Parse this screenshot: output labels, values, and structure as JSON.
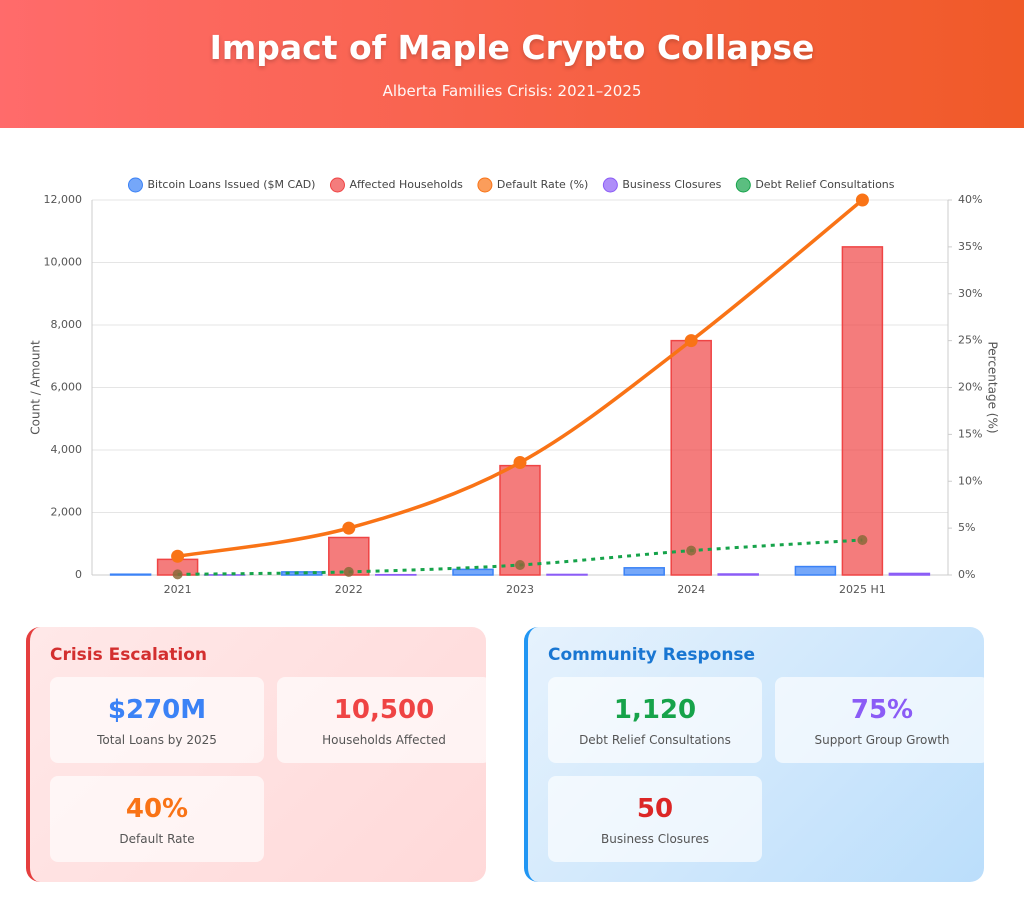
{
  "header": {
    "title": "Impact of Maple Crypto Collapse",
    "subtitle": "Alberta Families Crisis: 2021–2025"
  },
  "chart_data": {
    "type": "bar",
    "categories": [
      "2021",
      "2022",
      "2023",
      "2024",
      "2025 H1"
    ],
    "y_label": "Count / Amount",
    "y2_label": "Percentage (%)",
    "ylim": [
      0,
      12000
    ],
    "yticks": [
      0,
      {
        "value": 2000,
        "label": "2,000"
      },
      {
        "value": 4000,
        "label": "4,000"
      },
      {
        "value": 6000,
        "label": "6,000"
      },
      {
        "value": 8000,
        "label": "8,000"
      },
      {
        "value": 10000,
        "label": "10,000"
      },
      {
        "value": 12000,
        "label": "12,000"
      }
    ],
    "y2lim": [
      0,
      40
    ],
    "y2ticks": [
      {
        "value": 0,
        "label": "0%"
      },
      {
        "value": 5,
        "label": "5%"
      },
      {
        "value": 10,
        "label": "10%"
      },
      {
        "value": 15,
        "label": "15%"
      },
      {
        "value": 20,
        "label": "20%"
      },
      {
        "value": 25,
        "label": "25%"
      },
      {
        "value": 30,
        "label": "30%"
      },
      {
        "value": 35,
        "label": "35%"
      },
      {
        "value": 40,
        "label": "40%"
      }
    ],
    "grid": true,
    "legend": "top",
    "series": [
      {
        "name": "Bitcoin Loans Issued ($M CAD)",
        "type": "bar",
        "color": "#3b82f6",
        "values": [
          25,
          100,
          180,
          230,
          270
        ]
      },
      {
        "name": "Affected Households",
        "type": "bar",
        "color": "#ef4444",
        "values": [
          500,
          1200,
          3500,
          7500,
          10500
        ]
      },
      {
        "name": "Default Rate (%)",
        "type": "line",
        "axis": "y2",
        "color": "#f97316",
        "values": [
          2,
          5,
          12,
          25,
          40
        ]
      },
      {
        "name": "Business Closures",
        "type": "bar",
        "color": "#8b5cf6",
        "values": [
          3,
          10,
          18,
          32,
          50
        ]
      },
      {
        "name": "Debt Relief Consultations",
        "type": "line",
        "dashed": true,
        "color": "#16a34a",
        "values": [
          20,
          100,
          320,
          780,
          1120
        ]
      }
    ]
  },
  "panels": [
    {
      "title": "Crisis Escalation",
      "cards": [
        {
          "value": "$270M",
          "label": "Total Loans by 2025",
          "color": "#3b82f6"
        },
        {
          "value": "10,500",
          "label": "Households Affected",
          "color": "#ef4444"
        },
        {
          "value": "40%",
          "label": "Default Rate",
          "color": "#f97316"
        }
      ]
    },
    {
      "title": "Community Response",
      "cards": [
        {
          "value": "1,120",
          "label": "Debt Relief Consultations",
          "color": "#16a34a"
        },
        {
          "value": "75%",
          "label": "Support Group Growth",
          "color": "#8b5cf6"
        },
        {
          "value": "50",
          "label": "Business Closures",
          "color": "#dc2626"
        }
      ]
    }
  ]
}
